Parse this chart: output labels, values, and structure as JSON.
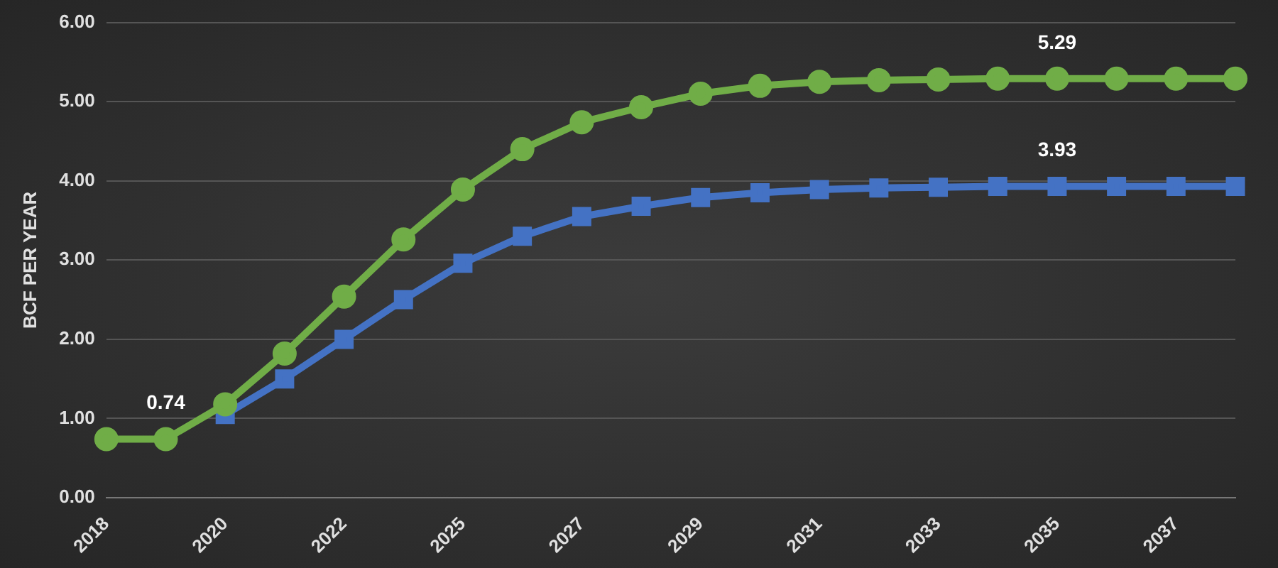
{
  "chart_data": {
    "type": "line",
    "ylabel": "BCF PER YEAR",
    "categories": [
      "2018",
      null,
      "2020",
      null,
      "2022",
      null,
      "2025",
      null,
      "2027",
      null,
      "2029",
      null,
      "2031",
      null,
      "2033",
      null,
      "2035",
      null,
      "2037",
      null
    ],
    "series": [
      {
        "color": "#70ad47",
        "marker": "circle",
        "values": [
          0.74,
          0.74,
          1.18,
          1.82,
          2.54,
          3.26,
          3.89,
          4.4,
          4.74,
          4.93,
          5.1,
          5.2,
          5.25,
          5.27,
          5.28,
          5.29,
          5.29,
          5.29,
          5.29,
          5.29
        ],
        "value_labels": [
          null,
          "0.74",
          null,
          null,
          null,
          null,
          null,
          null,
          null,
          null,
          null,
          null,
          null,
          null,
          null,
          null,
          "5.29",
          null,
          null,
          null
        ]
      },
      {
        "color": "#4472c4",
        "marker": "square",
        "values": [
          null,
          null,
          1.05,
          1.5,
          2.0,
          2.5,
          2.96,
          3.3,
          3.55,
          3.68,
          3.79,
          3.85,
          3.89,
          3.91,
          3.92,
          3.93,
          3.93,
          3.93,
          3.93,
          3.93
        ],
        "value_labels": [
          null,
          null,
          null,
          null,
          null,
          null,
          null,
          null,
          null,
          null,
          null,
          null,
          null,
          null,
          null,
          null,
          "3.93",
          null,
          null,
          null
        ]
      }
    ],
    "ylim": [
      0,
      6
    ],
    "yticks": [
      {
        "value": 0,
        "label": "0.00"
      },
      {
        "value": 1,
        "label": "1.00"
      },
      {
        "value": 2,
        "label": "2.00"
      },
      {
        "value": 3,
        "label": "3.00"
      },
      {
        "value": 4,
        "label": "4.00"
      },
      {
        "value": 5,
        "label": "5.00"
      },
      {
        "value": 6,
        "label": "6.00"
      }
    ],
    "grid": "y",
    "legend": false,
    "line_style": "solid"
  }
}
